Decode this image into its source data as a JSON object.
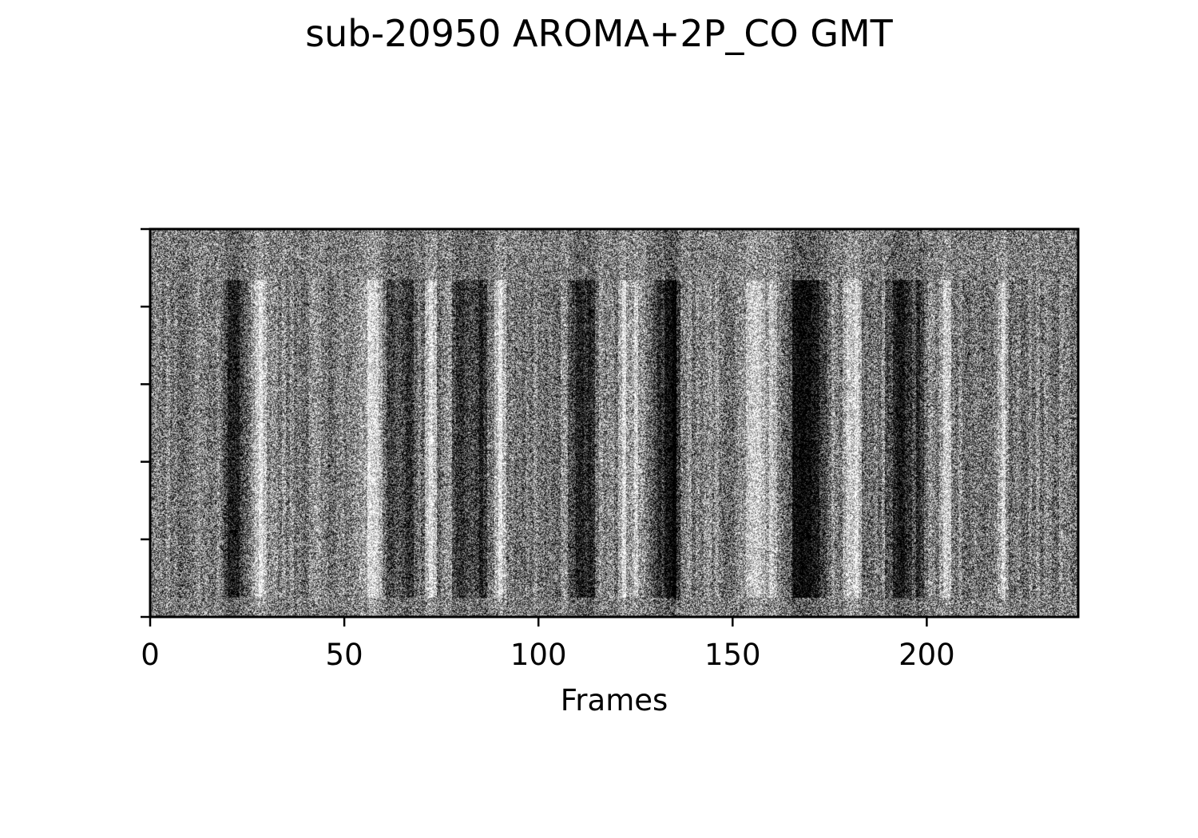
{
  "chart_data": {
    "type": "heatmap",
    "title": "sub-20950 AROMA+2P_CO GMT",
    "xlabel": "Frames",
    "ylabel": "",
    "xlim": [
      0,
      239
    ],
    "x_ticks": [
      0,
      50,
      100,
      150,
      200
    ],
    "y_tick_count": 6,
    "y_tick_labels_shown": false,
    "colormap": "gray",
    "grid": false,
    "legend": "none",
    "dark_bands_frames": [
      20,
      22,
      62,
      66,
      80,
      85,
      110,
      113,
      131,
      134,
      135,
      166,
      168,
      170,
      172,
      192,
      194,
      198
    ],
    "bright_bands_frames": [
      28,
      56,
      58,
      72,
      90,
      122,
      125,
      155,
      157,
      160,
      180,
      182,
      205,
      220
    ]
  },
  "colors": {
    "background": "#ffffff",
    "axis": "#000000"
  }
}
